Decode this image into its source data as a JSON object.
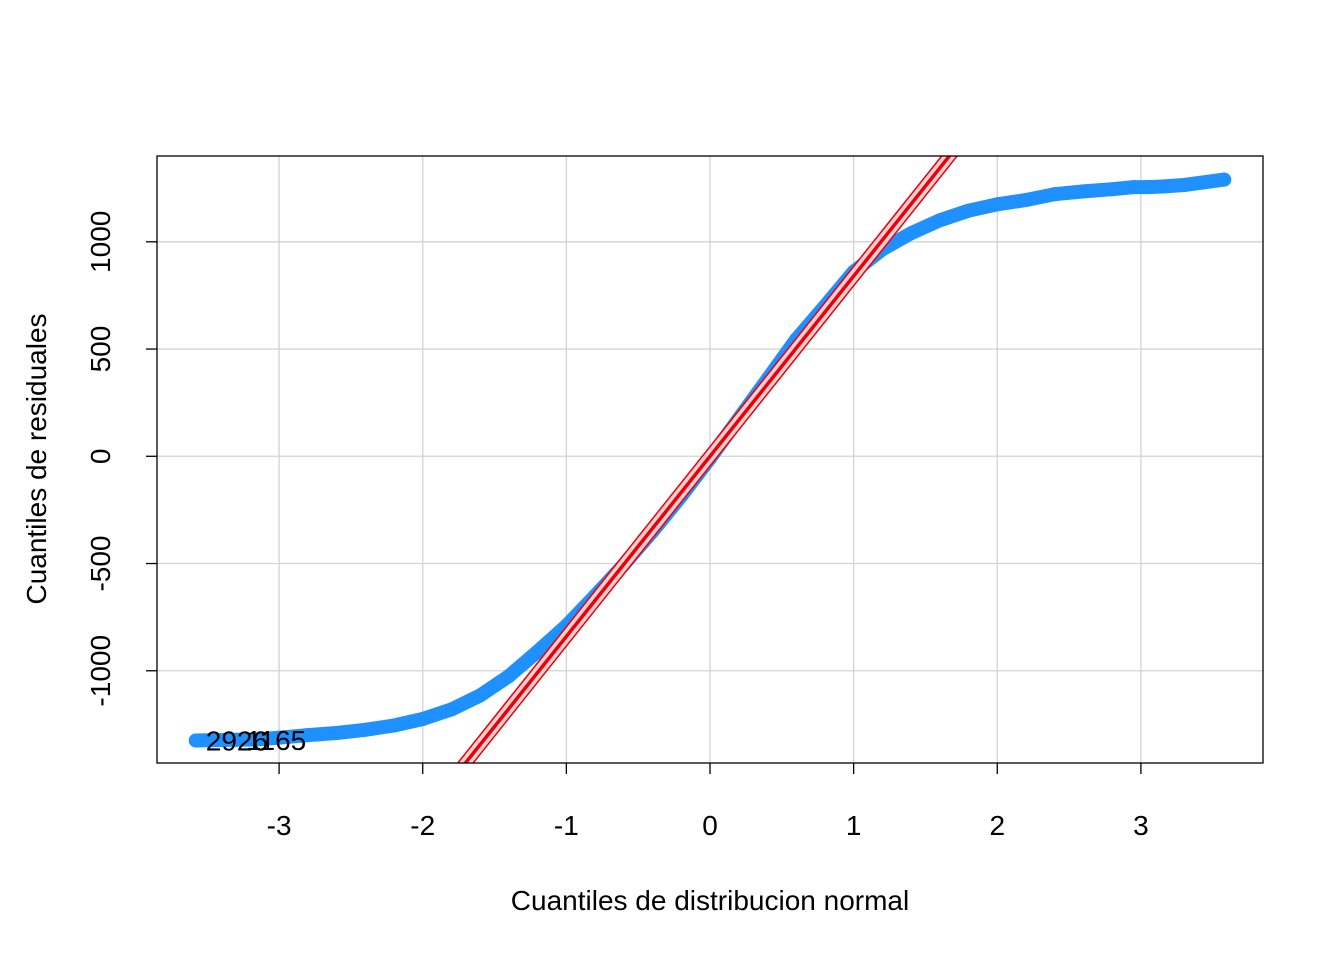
{
  "chart_data": {
    "type": "scatter",
    "title": "",
    "xlabel": "Cuantiles de distribucion normal",
    "ylabel": "Cuantiles de residuales",
    "xlim": [
      -3.85,
      3.85
    ],
    "ylim": [
      -1430,
      1400
    ],
    "xticks": [
      "-3",
      "-2",
      "-1",
      "0",
      "1",
      "2",
      "3"
    ],
    "yticks": [
      "-1000",
      "-500",
      "0",
      "500",
      "1000"
    ],
    "grid": true,
    "legend": "none",
    "reference_line": {
      "intercept": 0,
      "slope": 840,
      "envelope": 45
    },
    "outlier_labels": [
      {
        "text": "2926",
        "x": -3.58,
        "y": -1325
      },
      {
        "text": "1165",
        "x": -3.3,
        "y": -1322
      }
    ],
    "series": [
      {
        "points": [
          [
            -3.58,
            -1325
          ],
          [
            -3.3,
            -1322
          ],
          [
            -3.15,
            -1320
          ],
          [
            -3.0,
            -1312
          ],
          [
            -2.8,
            -1300
          ],
          [
            -2.6,
            -1290
          ],
          [
            -2.4,
            -1275
          ],
          [
            -2.2,
            -1255
          ],
          [
            -2.0,
            -1225
          ],
          [
            -1.8,
            -1180
          ],
          [
            -1.6,
            -1115
          ],
          [
            -1.4,
            -1025
          ],
          [
            -1.2,
            -910
          ],
          [
            -1.0,
            -790
          ],
          [
            -0.8,
            -650
          ],
          [
            -0.6,
            -505
          ],
          [
            -0.4,
            -350
          ],
          [
            -0.2,
            -185
          ],
          [
            0.0,
            -10
          ],
          [
            0.2,
            175
          ],
          [
            0.4,
            360
          ],
          [
            0.6,
            545
          ],
          [
            0.8,
            700
          ],
          [
            1.0,
            860
          ],
          [
            1.2,
            965
          ],
          [
            1.4,
            1040
          ],
          [
            1.6,
            1100
          ],
          [
            1.8,
            1145
          ],
          [
            2.0,
            1175
          ],
          [
            2.2,
            1195
          ],
          [
            2.4,
            1222
          ],
          [
            2.6,
            1235
          ],
          [
            2.8,
            1245
          ],
          [
            2.95,
            1255
          ],
          [
            3.05,
            1255
          ],
          [
            3.15,
            1258
          ],
          [
            3.3,
            1265
          ],
          [
            3.58,
            1290
          ]
        ]
      }
    ]
  },
  "colors": {
    "points": "#1e90ff",
    "line": "#e8000b",
    "envelope_fill": "#fbd0d0",
    "grid": "#d3d3d3",
    "box": "#000000"
  }
}
